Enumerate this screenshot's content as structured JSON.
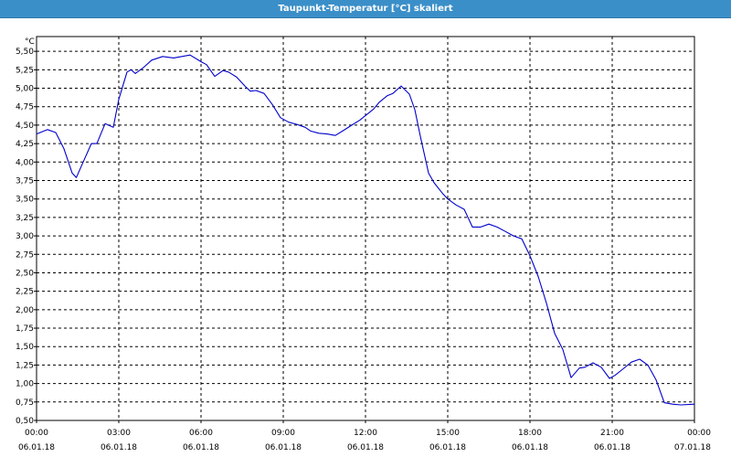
{
  "title": "Taupunkt-Temperatur [°C] skaliert",
  "colors": {
    "title_bar": "#3b8fc8",
    "line": "#0000cc",
    "grid": "#000000"
  },
  "chart_data": {
    "type": "line",
    "title": "Taupunkt-Temperatur [°C] skaliert",
    "ylabel": "°C",
    "xlabel": "",
    "ylim": [
      0.5,
      5.7
    ],
    "xlim": [
      0,
      24
    ],
    "grid": true,
    "y_ticks": [
      "0,50",
      "0,75",
      "1,00",
      "1,25",
      "1,50",
      "1,75",
      "2,00",
      "2,25",
      "2,50",
      "2,75",
      "3,00",
      "3,25",
      "3,50",
      "3,75",
      "4,00",
      "4,25",
      "4,50",
      "4,75",
      "5,00",
      "5,25",
      "5,50"
    ],
    "x_ticks": [
      {
        "time": "00:00",
        "date": "06.01.18"
      },
      {
        "time": "03:00",
        "date": "06.01.18"
      },
      {
        "time": "06:00",
        "date": "06.01.18"
      },
      {
        "time": "09:00",
        "date": "06.01.18"
      },
      {
        "time": "12:00",
        "date": "06.01.18"
      },
      {
        "time": "15:00",
        "date": "06.01.18"
      },
      {
        "time": "18:00",
        "date": "06.01.18"
      },
      {
        "time": "21:00",
        "date": "06.01.18"
      },
      {
        "time": "00:00",
        "date": "07.01.18"
      }
    ],
    "series": [
      {
        "x": [
          0,
          0.4,
          0.7,
          1.0,
          1.3,
          1.45,
          1.7,
          2.0,
          2.2,
          2.5,
          2.8,
          3.0,
          3.3,
          3.45,
          3.6,
          3.9,
          4.2,
          4.6,
          5.0,
          5.3,
          5.6,
          6.0,
          6.2,
          6.5,
          6.8,
          7.0,
          7.3,
          7.6,
          7.8,
          8.0,
          8.3,
          8.6,
          8.9,
          9.2,
          9.5,
          9.8,
          10.0,
          10.3,
          10.6,
          10.9,
          11.2,
          11.5,
          11.8,
          12.0,
          12.3,
          12.5,
          12.8,
          13.0,
          13.3,
          13.6,
          13.8,
          14.0,
          14.3,
          14.5,
          14.8,
          15.0,
          15.3,
          15.6,
          15.9,
          16.2,
          16.5,
          16.8,
          17.1,
          17.4,
          17.7,
          18.0,
          18.3,
          18.6,
          18.9,
          19.2,
          19.5,
          19.8,
          20.0,
          20.3,
          20.6,
          20.9,
          21.1,
          21.4,
          21.7,
          22.0,
          22.3,
          22.6,
          22.9,
          23.2,
          23.5,
          24.0
        ],
        "y": [
          4.38,
          4.44,
          4.4,
          4.18,
          3.85,
          3.79,
          4.0,
          4.25,
          4.25,
          4.52,
          4.47,
          4.85,
          5.22,
          5.25,
          5.2,
          5.28,
          5.38,
          5.43,
          5.41,
          5.43,
          5.45,
          5.36,
          5.32,
          5.16,
          5.24,
          5.22,
          5.15,
          5.03,
          4.96,
          4.97,
          4.93,
          4.78,
          4.6,
          4.54,
          4.51,
          4.47,
          4.42,
          4.39,
          4.38,
          4.36,
          4.43,
          4.5,
          4.57,
          4.63,
          4.72,
          4.81,
          4.9,
          4.93,
          5.03,
          4.92,
          4.71,
          4.35,
          3.85,
          3.72,
          3.58,
          3.5,
          3.42,
          3.36,
          3.12,
          3.12,
          3.16,
          3.12,
          3.06,
          3.0,
          2.96,
          2.73,
          2.45,
          2.09,
          1.68,
          1.46,
          1.08,
          1.21,
          1.22,
          1.28,
          1.22,
          1.07,
          1.11,
          1.2,
          1.29,
          1.33,
          1.25,
          1.05,
          0.74,
          0.72,
          0.71,
          0.72
        ]
      }
    ]
  }
}
